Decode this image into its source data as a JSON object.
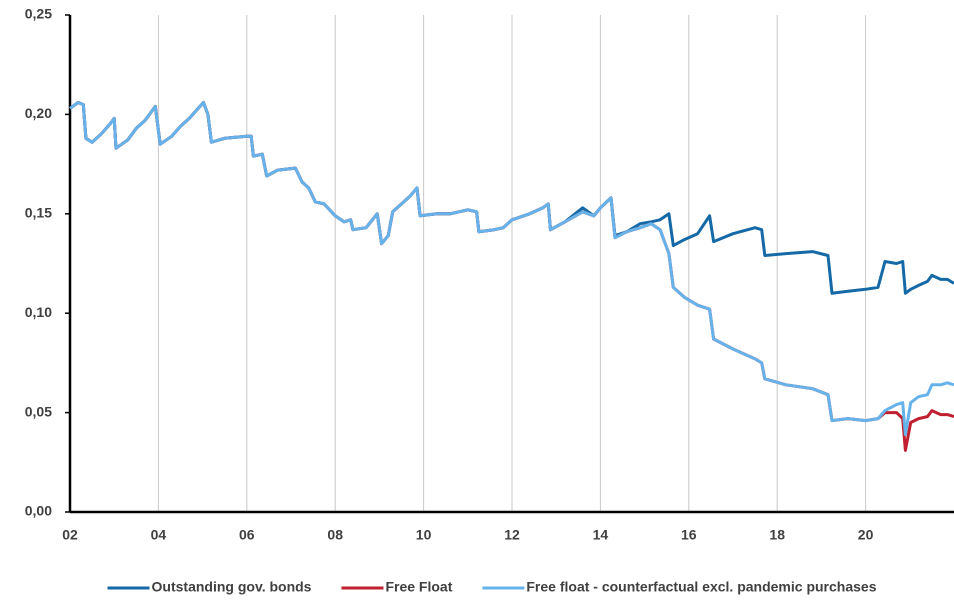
{
  "chart_data": {
    "type": "line",
    "x": [
      2002.0,
      2002.18,
      2002.3,
      2002.36,
      2002.5,
      2002.7,
      2002.9,
      2003.0,
      2003.04,
      2003.3,
      2003.5,
      2003.7,
      2003.93,
      2004.04,
      2004.3,
      2004.5,
      2004.7,
      2004.9,
      2005.02,
      2005.12,
      2005.2,
      2005.5,
      2006.0,
      2006.1,
      2006.15,
      2006.35,
      2006.45,
      2006.7,
      2007.1,
      2007.25,
      2007.4,
      2007.55,
      2007.75,
      2008.0,
      2008.2,
      2008.35,
      2008.4,
      2008.7,
      2008.95,
      2009.05,
      2009.2,
      2009.3,
      2009.5,
      2009.7,
      2009.85,
      2009.92,
      2010.3,
      2010.6,
      2011.0,
      2011.2,
      2011.25,
      2011.6,
      2011.8,
      2012.0,
      2012.4,
      2012.7,
      2012.82,
      2012.87,
      2013.2,
      2013.6,
      2013.85,
      2014.0,
      2014.24,
      2014.33,
      2014.6,
      2014.9,
      2015.15,
      2015.35,
      2015.55,
      2015.65,
      2015.9,
      2016.2,
      2016.47,
      2016.56,
      2017.0,
      2017.5,
      2017.65,
      2017.72,
      2018.2,
      2018.8,
      2019.15,
      2019.24,
      2019.6,
      2020.0,
      2020.28,
      2020.44,
      2020.7,
      2020.84,
      2020.9,
      2021.02,
      2021.2,
      2021.4,
      2021.5,
      2021.7,
      2021.85,
      2022.0
    ],
    "series": [
      {
        "name": "Outstanding gov. bonds",
        "color": "#1469a6",
        "values": [
          0.203,
          0.206,
          0.205,
          0.188,
          0.186,
          0.19,
          0.195,
          0.198,
          0.183,
          0.187,
          0.193,
          0.197,
          0.204,
          0.185,
          0.189,
          0.194,
          0.198,
          0.203,
          0.206,
          0.2,
          0.186,
          0.188,
          0.189,
          0.189,
          0.179,
          0.18,
          0.169,
          0.172,
          0.173,
          0.166,
          0.163,
          0.156,
          0.155,
          0.149,
          0.146,
          0.147,
          0.142,
          0.143,
          0.15,
          0.135,
          0.139,
          0.151,
          0.155,
          0.159,
          0.163,
          0.149,
          0.15,
          0.15,
          0.152,
          0.151,
          0.141,
          0.142,
          0.143,
          0.147,
          0.15,
          0.153,
          0.155,
          0.142,
          0.146,
          0.153,
          0.149,
          0.153,
          0.158,
          0.139,
          0.141,
          0.145,
          0.146,
          0.147,
          0.15,
          0.134,
          0.137,
          0.14,
          0.149,
          0.136,
          0.14,
          0.143,
          0.142,
          0.129,
          0.13,
          0.131,
          0.129,
          0.11,
          0.111,
          0.112,
          0.113,
          0.126,
          0.125,
          0.126,
          0.11,
          0.112,
          0.114,
          0.116,
          0.119,
          0.117,
          0.117,
          0.115
        ]
      },
      {
        "name": "Free Float",
        "color": "#c01f2f",
        "values": [
          0.203,
          0.206,
          0.205,
          0.188,
          0.186,
          0.19,
          0.195,
          0.198,
          0.183,
          0.187,
          0.193,
          0.197,
          0.204,
          0.185,
          0.189,
          0.194,
          0.198,
          0.203,
          0.206,
          0.2,
          0.186,
          0.188,
          0.189,
          0.189,
          0.179,
          0.18,
          0.169,
          0.172,
          0.173,
          0.166,
          0.163,
          0.156,
          0.155,
          0.149,
          0.146,
          0.147,
          0.142,
          0.143,
          0.15,
          0.135,
          0.139,
          0.151,
          0.155,
          0.159,
          0.163,
          0.149,
          0.15,
          0.15,
          0.152,
          0.151,
          0.141,
          0.142,
          0.143,
          0.147,
          0.15,
          0.153,
          0.155,
          0.142,
          0.146,
          0.151,
          0.149,
          0.153,
          0.158,
          0.138,
          0.141,
          0.143,
          0.145,
          0.142,
          0.13,
          0.113,
          0.108,
          0.104,
          0.102,
          0.087,
          0.082,
          0.077,
          0.075,
          0.067,
          0.064,
          0.062,
          0.059,
          0.046,
          0.047,
          0.046,
          0.047,
          0.05,
          0.05,
          0.047,
          0.031,
          0.045,
          0.047,
          0.048,
          0.051,
          0.049,
          0.049,
          0.048
        ]
      },
      {
        "name": "Free float - counterfactual excl. pandemic purchases",
        "color": "#66b2ea",
        "values": [
          0.203,
          0.206,
          0.205,
          0.188,
          0.186,
          0.19,
          0.195,
          0.198,
          0.183,
          0.187,
          0.193,
          0.197,
          0.204,
          0.185,
          0.189,
          0.194,
          0.198,
          0.203,
          0.206,
          0.2,
          0.186,
          0.188,
          0.189,
          0.189,
          0.179,
          0.18,
          0.169,
          0.172,
          0.173,
          0.166,
          0.163,
          0.156,
          0.155,
          0.149,
          0.146,
          0.147,
          0.142,
          0.143,
          0.15,
          0.135,
          0.139,
          0.151,
          0.155,
          0.159,
          0.163,
          0.149,
          0.15,
          0.15,
          0.152,
          0.151,
          0.141,
          0.142,
          0.143,
          0.147,
          0.15,
          0.153,
          0.155,
          0.142,
          0.146,
          0.151,
          0.149,
          0.153,
          0.158,
          0.138,
          0.141,
          0.143,
          0.145,
          0.142,
          0.13,
          0.113,
          0.108,
          0.104,
          0.102,
          0.087,
          0.082,
          0.077,
          0.075,
          0.067,
          0.064,
          0.062,
          0.059,
          0.046,
          0.047,
          0.046,
          0.047,
          0.051,
          0.054,
          0.055,
          0.039,
          0.055,
          0.058,
          0.059,
          0.064,
          0.064,
          0.065,
          0.064
        ]
      }
    ],
    "xlim": [
      2002,
      2022
    ],
    "xticks": [
      {
        "value": 2002,
        "label": "02"
      },
      {
        "value": 2004,
        "label": "04"
      },
      {
        "value": 2006,
        "label": "06"
      },
      {
        "value": 2008,
        "label": "08"
      },
      {
        "value": 2010,
        "label": "10"
      },
      {
        "value": 2012,
        "label": "12"
      },
      {
        "value": 2014,
        "label": "14"
      },
      {
        "value": 2016,
        "label": "16"
      },
      {
        "value": 2018,
        "label": "18"
      },
      {
        "value": 2020,
        "label": "20"
      }
    ],
    "ylim": [
      0,
      0.25
    ],
    "yticks": [
      {
        "value": 0,
        "label": "0,00"
      },
      {
        "value": 0.05,
        "label": "0,05"
      },
      {
        "value": 0.1,
        "label": "0,10"
      },
      {
        "value": 0.15,
        "label": "0,15"
      },
      {
        "value": 0.2,
        "label": "0,20"
      },
      {
        "value": 0.25,
        "label": "0,25"
      }
    ],
    "grid": true,
    "legend": "bottom"
  }
}
